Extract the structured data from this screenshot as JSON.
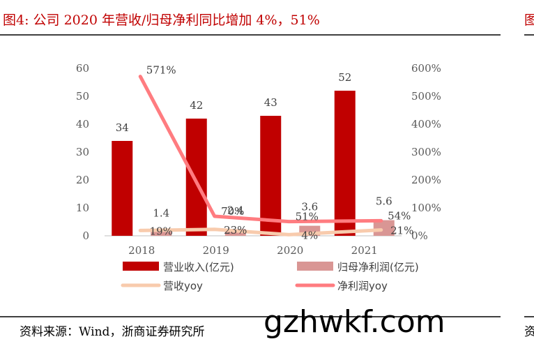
{
  "header": {
    "title": "图4:  公司 2020 年营收/归母净利同比增加 4%，51%",
    "right_fragment": "图"
  },
  "footer": {
    "source": "资料来源：Wind，浙商证券研究所",
    "watermark": "gzhwkf.com",
    "right_fragment": "资"
  },
  "chart_data": {
    "type": "bar",
    "categories": [
      "2018",
      "2019",
      "2020",
      "2021"
    ],
    "series": [
      {
        "name": "营业收入(亿元)",
        "kind": "bar",
        "axis": "left",
        "color": "#c00000",
        "values": [
          34,
          42,
          43,
          52
        ],
        "labels": [
          "34",
          "42",
          "43",
          "52"
        ]
      },
      {
        "name": "归母净利润(亿元)",
        "kind": "bar",
        "axis": "left",
        "color": "#d99694",
        "values": [
          1.4,
          2.4,
          3.6,
          5.6
        ],
        "labels": [
          "1.4",
          "2.4",
          "3.6",
          "5.6"
        ]
      },
      {
        "name": "营收yoy",
        "kind": "line",
        "axis": "right",
        "color": "#f8cbad",
        "values": [
          19,
          23,
          4,
          21
        ],
        "labels": [
          "19%",
          "23%",
          "4%",
          "21%"
        ]
      },
      {
        "name": "净利润yoy",
        "kind": "line",
        "axis": "right",
        "color": "#ff7c80",
        "values": [
          571,
          70,
          51,
          54
        ],
        "labels": [
          "571%",
          "70%",
          "51%",
          "54%"
        ]
      }
    ],
    "left_axis": {
      "min": 0,
      "max": 60,
      "ticks": [
        "0",
        "10",
        "20",
        "30",
        "40",
        "50",
        "60"
      ]
    },
    "right_axis": {
      "min": 0,
      "max": 600,
      "ticks": [
        "0%",
        "100%",
        "200%",
        "300%",
        "400%",
        "500%",
        "600%"
      ]
    },
    "grid": false,
    "legend_position": "bottom"
  }
}
